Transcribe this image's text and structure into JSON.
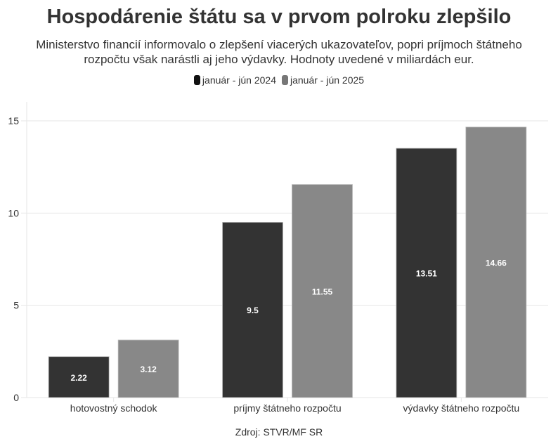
{
  "chart_data": {
    "type": "bar",
    "title": "Hospodárenie štátu sa v prvom polroku zlepšilo",
    "subtitle_lines": [
      "Ministerstvo financií informovalo o zlepšení viacerých ukazovateľov, popri príjmoch štátneho",
      "rozpočtu však narástli aj jeho výdavky. Hodnoty uvedené v miliardách eur."
    ],
    "categories": [
      "hotovostný schodok",
      "príjmy štátneho rozpočtu",
      "výdavky štátneho rozpočtu"
    ],
    "series": [
      {
        "name": "január - jún 2024",
        "color": "#333333",
        "values": [
          2.22,
          9.5,
          13.51
        ]
      },
      {
        "name": "január - jún 2025",
        "color": "#888888",
        "values": [
          3.12,
          11.55,
          14.66
        ]
      }
    ],
    "ylim": [
      0,
      16
    ],
    "yticks": [
      0,
      5,
      10,
      15
    ],
    "grid": true,
    "legend_position": "top-center",
    "xlabel": "",
    "ylabel": "",
    "source": "Zdroj: STVR/MF SR"
  }
}
